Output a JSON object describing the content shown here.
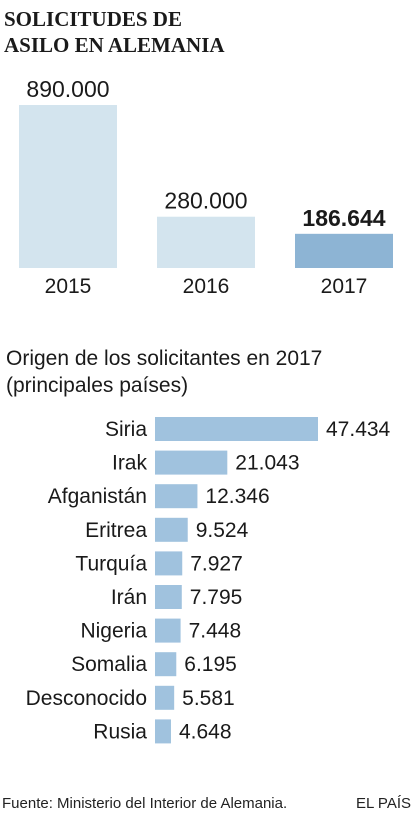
{
  "title_line1": "SOLICITUDES DE",
  "title_line2": "ASILO EN ALEMANIA",
  "colors": {
    "bar_light": "#d3e4ee",
    "bar_dark": "#8db4d4",
    "bar_country": "#a0c2de",
    "text": "#1a1a1a"
  },
  "subtitle_line1": "Origen de los solicitantes en 2017",
  "subtitle_line2": "(principales países)",
  "source": "Fuente: Ministerio del Interior de Alemania.",
  "brand": "EL PAÍS",
  "chart_data": [
    {
      "type": "bar",
      "orientation": "vertical",
      "categories": [
        "2015",
        "2016",
        "2017"
      ],
      "values": [
        890000,
        280000,
        186644
      ],
      "value_labels": [
        "890.000",
        "280.000",
        "186.644"
      ],
      "highlight": "2017",
      "title": "SOLICITUDES DE ASILO EN ALEMANIA"
    },
    {
      "type": "bar",
      "orientation": "horizontal",
      "categories": [
        "Siria",
        "Irak",
        "Afganistán",
        "Eritrea",
        "Turquía",
        "Irán",
        "Nigeria",
        "Somalia",
        "Desconocido",
        "Rusia"
      ],
      "values": [
        47434,
        21043,
        12346,
        9524,
        7927,
        7795,
        7448,
        6195,
        5581,
        4648
      ],
      "value_labels": [
        "47.434",
        "21.043",
        "12.346",
        "9.524",
        "7.927",
        "7.795",
        "7.448",
        "6.195",
        "5.581",
        "4.648"
      ],
      "title": "Origen de los solicitantes en 2017 (principales países)"
    }
  ]
}
